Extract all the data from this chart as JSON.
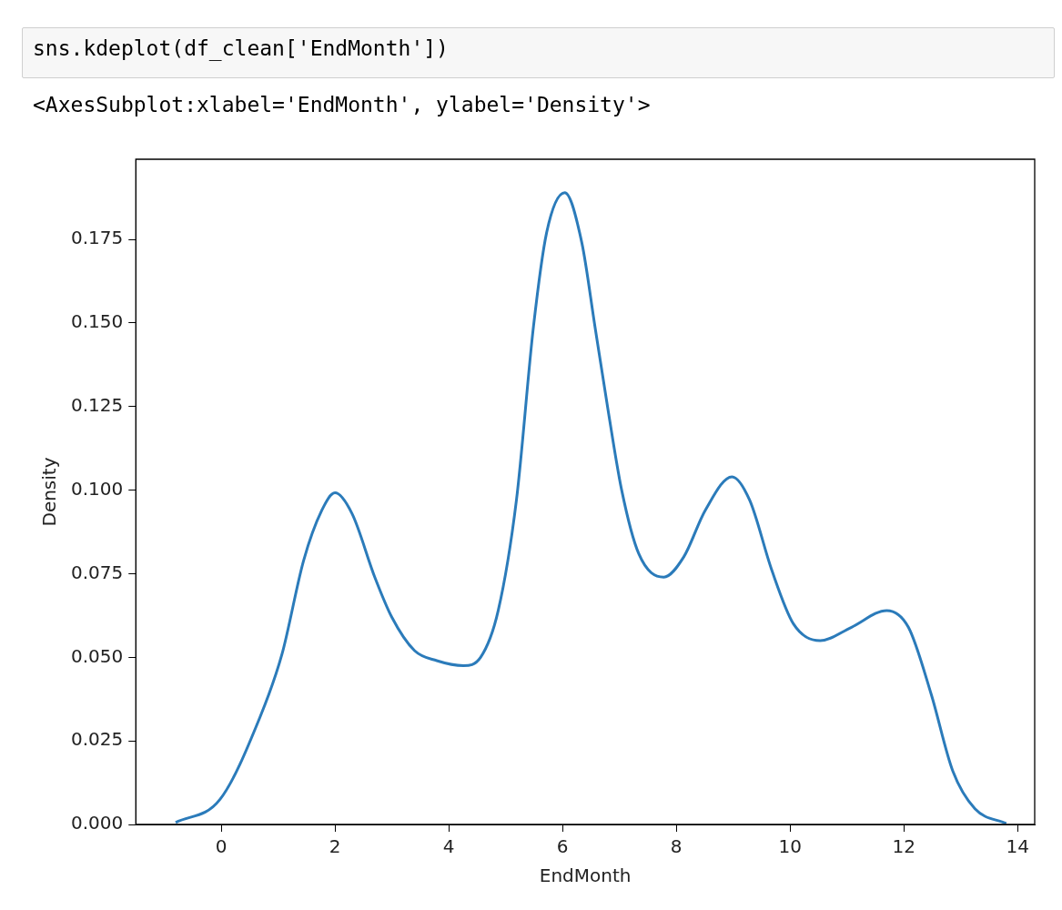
{
  "chart_data": {
    "type": "line",
    "annotations": [
      "sns.kdeplot(df_clean['EndMonth'])",
      "<AxesSubplot:xlabel='EndMonth', ylabel='Density'>"
    ],
    "xlabel": "EndMonth",
    "ylabel": "Density",
    "x": [
      -0.8,
      -0.02,
      0.68,
      1.07,
      1.45,
      1.77,
      2.0,
      2.3,
      2.7,
      3.0,
      3.4,
      3.79,
      4.26,
      4.56,
      4.87,
      5.19,
      5.49,
      5.72,
      6.04,
      6.34,
      6.57,
      6.81,
      7.04,
      7.34,
      7.78,
      8.13,
      8.51,
      8.98,
      9.29,
      9.68,
      10.06,
      10.53,
      11.08,
      11.7,
      12.08,
      12.48,
      12.86,
      13.25,
      13.8
    ],
    "series": [
      {
        "color": "#2b7bba",
        "values": [
          0.0006,
          0.0075,
          0.032,
          0.051,
          0.079,
          0.094,
          0.0992,
          0.093,
          0.074,
          0.062,
          0.052,
          0.049,
          0.0475,
          0.05,
          0.064,
          0.097,
          0.149,
          0.177,
          0.189,
          0.174,
          0.149,
          0.123,
          0.1,
          0.081,
          0.074,
          0.08,
          0.094,
          0.104,
          0.097,
          0.076,
          0.06,
          0.055,
          0.059,
          0.064,
          0.059,
          0.039,
          0.016,
          0.0047,
          0.0003
        ]
      }
    ],
    "xlim": [
      -1.5,
      14.3
    ],
    "ylim": [
      0,
      0.199
    ],
    "xticks": [
      0,
      2,
      4,
      6,
      8,
      10,
      12,
      14
    ],
    "yticks": [
      {
        "value": 0,
        "label": "0.000"
      },
      {
        "value": 0.025,
        "label": "0.025"
      },
      {
        "value": 0.05,
        "label": "0.050"
      },
      {
        "value": 0.075,
        "label": "0.075"
      },
      {
        "value": 0.1,
        "label": "0.100"
      },
      {
        "value": 0.125,
        "label": "0.125"
      },
      {
        "value": 0.15,
        "label": "0.150"
      },
      {
        "value": 0.175,
        "label": "0.175"
      }
    ]
  }
}
